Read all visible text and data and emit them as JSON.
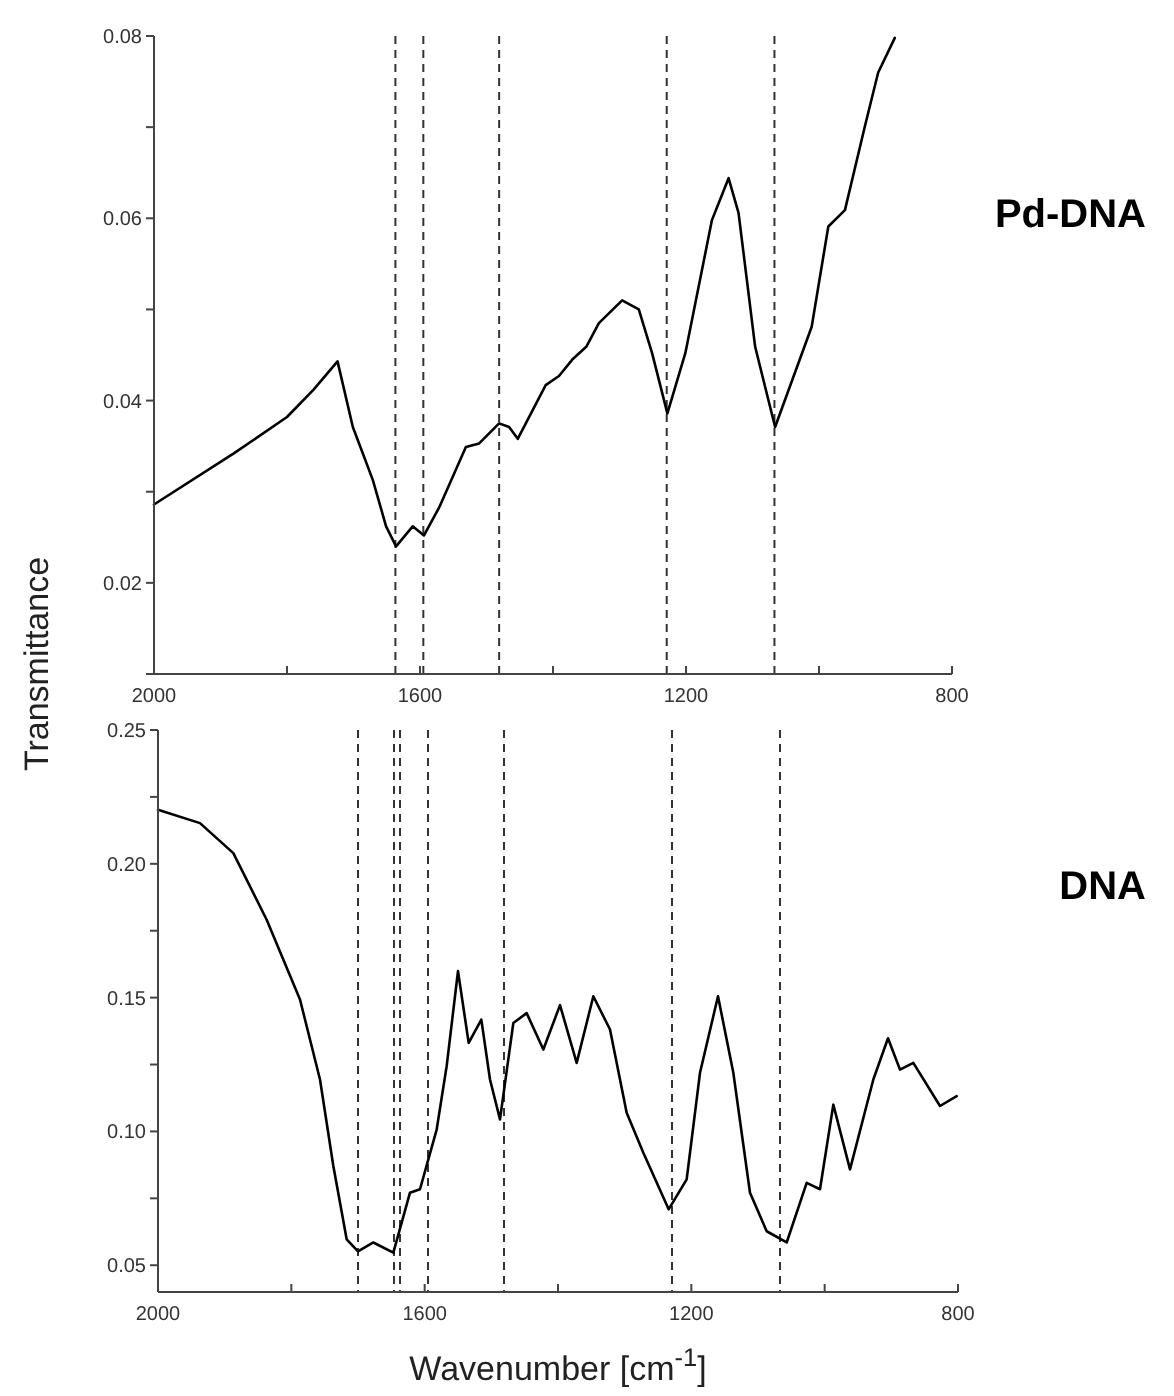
{
  "chart_data": [
    {
      "type": "line",
      "ylabel": "Transmittance",
      "xlim": [
        2000,
        800
      ],
      "ylim": [
        0.01,
        0.08
      ],
      "xticks": [
        2000,
        {
          "value": 1800,
          "label": null
        },
        1600,
        {
          "value": 1400,
          "label": null
        },
        1200,
        {
          "value": 1000,
          "label": null
        },
        800
      ],
      "yticks": [
        {
          "value": 0.01,
          "label": null
        },
        0.02,
        {
          "value": 0.03,
          "label": null
        },
        0.04,
        {
          "value": 0.05,
          "label": null
        },
        0.06,
        {
          "value": 0.07,
          "label": null
        },
        0.08
      ],
      "grid": false,
      "ref_lines": [
        {
          "axis": "x",
          "value": 1637,
          "line_style": "dashed",
          "color": "#333333"
        },
        {
          "axis": "x",
          "value": 1595,
          "line_style": "dashed",
          "color": "#333333"
        },
        {
          "axis": "x",
          "value": 1481,
          "line_style": "dashed",
          "color": "#333333"
        },
        {
          "axis": "x",
          "value": 1229,
          "line_style": "dashed",
          "color": "#333333"
        },
        {
          "axis": "x",
          "value": 1067,
          "line_style": "dashed",
          "color": "#333333"
        }
      ],
      "series": [
        {
          "name": "Pd-DNA",
          "color": "#000000",
          "x": [
            2000,
            1880,
            1800,
            1760,
            1724,
            1701,
            1671,
            1651,
            1636,
            1611,
            1594,
            1571,
            1531,
            1511,
            1481,
            1466,
            1453,
            1411,
            1391,
            1371,
            1350,
            1331,
            1296,
            1271,
            1251,
            1228,
            1201,
            1161,
            1136,
            1121,
            1096,
            1066,
            1011,
            986,
            961,
            931,
            911,
            886
          ],
          "values": [
            0.0286,
            0.0342,
            0.0382,
            0.0412,
            0.0443,
            0.0371,
            0.0313,
            0.0262,
            0.024,
            0.0262,
            0.0252,
            0.0283,
            0.0349,
            0.0353,
            0.0375,
            0.0371,
            0.0358,
            0.0417,
            0.0427,
            0.0445,
            0.0459,
            0.0485,
            0.051,
            0.05,
            0.0452,
            0.0386,
            0.0452,
            0.0598,
            0.0644,
            0.0606,
            0.0459,
            0.0371,
            0.0481,
            0.0591,
            0.0609,
            0.0701,
            0.076,
            0.0798
          ]
        }
      ]
    },
    {
      "type": "line",
      "xlabel": "Wavenumber [cm$^{-1}$]",
      "xlim": [
        2000,
        800
      ],
      "ylim": [
        0.04,
        0.25
      ],
      "xticks": [
        2000,
        {
          "value": 1800,
          "label": null
        },
        1600,
        {
          "value": 1400,
          "label": null
        },
        1200,
        {
          "value": 1000,
          "label": null
        },
        800
      ],
      "yticks": [
        {
          "value": 0.075,
          "label": null
        },
        0.05,
        {
          "value": 0.1,
          "label": "0.10"
        },
        {
          "value": 0.125,
          "label": null
        },
        0.15,
        {
          "value": 0.175,
          "label": null
        },
        {
          "value": 0.2,
          "label": "0.20"
        },
        {
          "value": 0.225,
          "label": null
        },
        0.25
      ],
      "grid": false,
      "ref_lines": [
        {
          "axis": "x",
          "value": 1700,
          "line_style": "dashed",
          "color": "#333333"
        },
        {
          "axis": "x",
          "value": 1646,
          "line_style": "dashed",
          "color": "#333333"
        },
        {
          "axis": "x",
          "value": 1637,
          "line_style": "dashed",
          "color": "#333333"
        },
        {
          "axis": "x",
          "value": 1595,
          "line_style": "dashed",
          "color": "#333333"
        },
        {
          "axis": "x",
          "value": 1481,
          "line_style": "dashed",
          "color": "#333333"
        },
        {
          "axis": "x",
          "value": 1229,
          "line_style": "dashed",
          "color": "#333333"
        },
        {
          "axis": "x",
          "value": 1067,
          "line_style": "dashed",
          "color": "#333333"
        }
      ],
      "series": [
        {
          "name": "DNA",
          "color": "#000000",
          "x": [
            2000,
            1937,
            1887,
            1837,
            1787,
            1757,
            1737,
            1717,
            1700,
            1677,
            1647,
            1622,
            1607,
            1582,
            1567,
            1550,
            1534,
            1515,
            1502,
            1487,
            1467,
            1447,
            1422,
            1397,
            1372,
            1347,
            1322,
            1297,
            1272,
            1234,
            1207,
            1187,
            1160,
            1137,
            1112,
            1087,
            1057,
            1027,
            1007,
            987,
            962,
            927,
            905,
            887,
            867,
            827,
            802
          ],
          "values": [
            0.2202,
            0.2152,
            0.204,
            0.1791,
            0.1493,
            0.1194,
            0.0871,
            0.0597,
            0.0552,
            0.0585,
            0.0547,
            0.0771,
            0.0784,
            0.1007,
            0.1244,
            0.1599,
            0.1331,
            0.1418,
            0.1194,
            0.1045,
            0.1405,
            0.1442,
            0.1306,
            0.1472,
            0.1256,
            0.1505,
            0.1381,
            0.107,
            0.092,
            0.0709,
            0.0821,
            0.1219,
            0.1505,
            0.1219,
            0.0771,
            0.0627,
            0.0585,
            0.0808,
            0.0784,
            0.11,
            0.0858,
            0.1194,
            0.1348,
            0.1231,
            0.1256,
            0.1095,
            0.1132
          ]
        }
      ]
    }
  ]
}
